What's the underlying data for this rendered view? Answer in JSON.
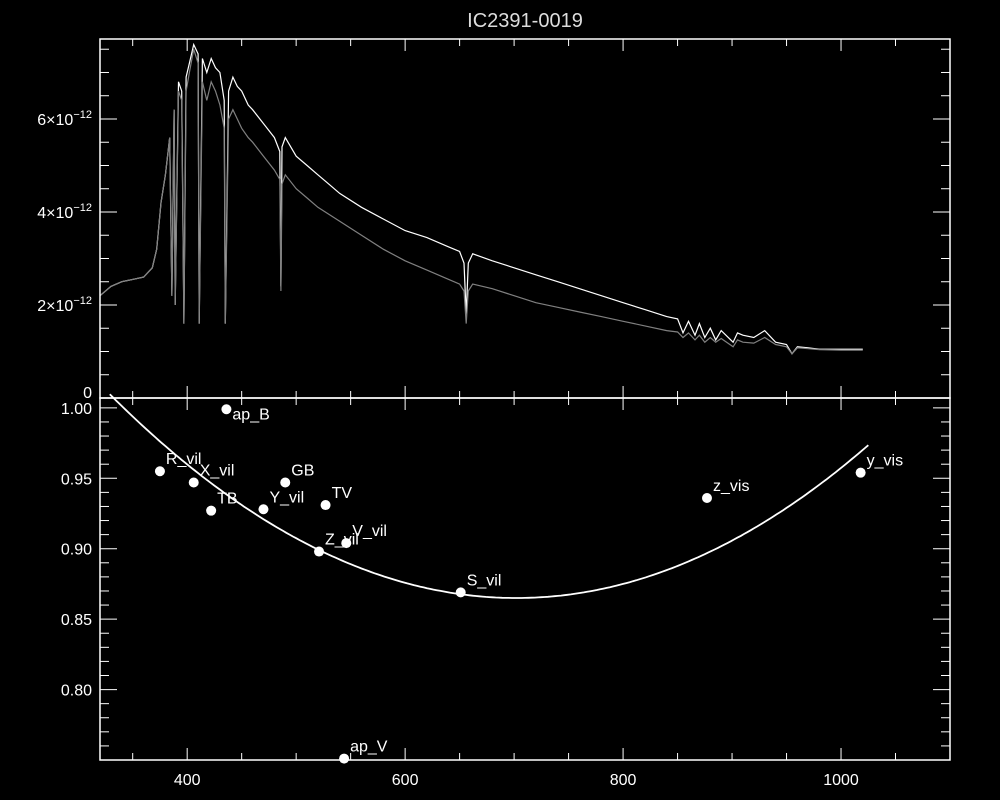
{
  "chart_data": [
    {
      "type": "line",
      "title": "IC2391-0019",
      "xlabel": "",
      "ylabel": "",
      "xlim": [
        320,
        1100
      ],
      "ylim": [
        0,
        7.72e-12
      ],
      "x_ticks": [
        400,
        600,
        800,
        1000
      ],
      "y_tick_labels": [
        {
          "value": 0,
          "mantissa": "0",
          "exponent": ""
        },
        {
          "value": 2e-12,
          "mantissa": "2×10",
          "exponent": "−12"
        },
        {
          "value": 4e-12,
          "mantissa": "4×10",
          "exponent": "−12"
        },
        {
          "value": 6e-12,
          "mantissa": "6×10",
          "exponent": "−12"
        }
      ],
      "grid": false,
      "series": [
        {
          "color": "#ffffff",
          "x": [
            320,
            330,
            340,
            350,
            360,
            368,
            372,
            376,
            380,
            384,
            386,
            388,
            389,
            392,
            395,
            397,
            399,
            402,
            406,
            410,
            411,
            414,
            418,
            422,
            426,
            430,
            434,
            435,
            438,
            442,
            446,
            450,
            456,
            460,
            470,
            480,
            485,
            486,
            487,
            490,
            500,
            510,
            520,
            530,
            540,
            560,
            580,
            600,
            620,
            640,
            650,
            654,
            656,
            658,
            662,
            680,
            700,
            720,
            740,
            760,
            780,
            800,
            820,
            840,
            850,
            855,
            860,
            866,
            870,
            875,
            880,
            885,
            890,
            901,
            905,
            910,
            920,
            930,
            940,
            950,
            955,
            960,
            970,
            980,
            1000,
            1020
          ],
          "y": [
            2.2e-12,
            2.4e-12,
            2.5e-12,
            2.55e-12,
            2.6e-12,
            2.8e-12,
            3.2e-12,
            4.2e-12,
            4.8e-12,
            5.6e-12,
            2.2e-12,
            6.2e-12,
            2e-12,
            6.8e-12,
            6.6e-12,
            1.6e-12,
            6.9e-12,
            7.2e-12,
            7.6e-12,
            7.4e-12,
            1.6e-12,
            7.3e-12,
            7e-12,
            7.3e-12,
            7.1e-12,
            7e-12,
            6.4e-12,
            1.6e-12,
            6.6e-12,
            6.9e-12,
            6.7e-12,
            6.6e-12,
            6.3e-12,
            6.2e-12,
            5.9e-12,
            5.6e-12,
            5.3e-12,
            2.4e-12,
            5.4e-12,
            5.6e-12,
            5.2e-12,
            5e-12,
            4.8e-12,
            4.6e-12,
            4.4e-12,
            4.1e-12,
            3.85e-12,
            3.6e-12,
            3.45e-12,
            3.25e-12,
            3.15e-12,
            2.9e-12,
            1.8e-12,
            2.9e-12,
            3.1e-12,
            2.95e-12,
            2.8e-12,
            2.65e-12,
            2.5e-12,
            2.35e-12,
            2.2e-12,
            2.05e-12,
            1.9e-12,
            1.75e-12,
            1.7e-12,
            1.4e-12,
            1.65e-12,
            1.35e-12,
            1.6e-12,
            1.3e-12,
            1.5e-12,
            1.25e-12,
            1.45e-12,
            1.2e-12,
            1.4e-12,
            1.35e-12,
            1.3e-12,
            1.45e-12,
            1.2e-12,
            1.15e-12,
            9.5e-13,
            1.1e-12,
            1.08e-12,
            1.05e-12,
            1.05e-12,
            1.05e-12
          ]
        },
        {
          "color": "#808080",
          "x": [
            320,
            330,
            340,
            350,
            360,
            368,
            372,
            376,
            380,
            384,
            386,
            388,
            389,
            392,
            395,
            397,
            399,
            402,
            406,
            410,
            411,
            414,
            418,
            422,
            426,
            430,
            434,
            435,
            438,
            442,
            446,
            450,
            456,
            460,
            470,
            480,
            485,
            486,
            487,
            490,
            500,
            510,
            520,
            530,
            540,
            560,
            580,
            600,
            620,
            640,
            650,
            654,
            656,
            658,
            662,
            680,
            700,
            720,
            740,
            760,
            780,
            800,
            820,
            840,
            850,
            855,
            860,
            866,
            870,
            875,
            880,
            885,
            890,
            901,
            905,
            910,
            920,
            930,
            940,
            950,
            955,
            960,
            970,
            980,
            1000,
            1020
          ],
          "y": [
            2.2e-12,
            2.4e-12,
            2.5e-12,
            2.55e-12,
            2.6e-12,
            2.8e-12,
            3.2e-12,
            4.2e-12,
            4.8e-12,
            5.6e-12,
            2.2e-12,
            6.2e-12,
            2e-12,
            6.6e-12,
            6.4e-12,
            1.6e-12,
            6.6e-12,
            7e-12,
            7.5e-12,
            7.2e-12,
            1.6e-12,
            6.8e-12,
            6.4e-12,
            6.8e-12,
            6.6e-12,
            6.3e-12,
            5.8e-12,
            1.6e-12,
            6e-12,
            6.2e-12,
            6e-12,
            5.8e-12,
            5.6e-12,
            5.5e-12,
            5.2e-12,
            4.9e-12,
            4.7e-12,
            2.3e-12,
            4.6e-12,
            4.8e-12,
            4.5e-12,
            4.3e-12,
            4.1e-12,
            3.95e-12,
            3.8e-12,
            3.5e-12,
            3.2e-12,
            2.95e-12,
            2.75e-12,
            2.55e-12,
            2.45e-12,
            2.3e-12,
            1.6e-12,
            2.3e-12,
            2.45e-12,
            2.35e-12,
            2.2e-12,
            2.05e-12,
            1.95e-12,
            1.85e-12,
            1.75e-12,
            1.65e-12,
            1.55e-12,
            1.45e-12,
            1.42e-12,
            1.3e-12,
            1.4e-12,
            1.25e-12,
            1.35e-12,
            1.2e-12,
            1.3e-12,
            1.2e-12,
            1.28e-12,
            1.1e-12,
            1.25e-12,
            1.2e-12,
            1.18e-12,
            1.3e-12,
            1.15e-12,
            1.1e-12,
            9.5e-13,
            1.08e-12,
            1.06e-12,
            1.04e-12,
            1.03e-12,
            1.03e-12
          ]
        }
      ]
    },
    {
      "type": "scatter",
      "xlabel": "",
      "ylabel": "",
      "xlim": [
        320,
        1100
      ],
      "ylim": [
        0.75,
        1.007
      ],
      "x_ticks": [
        400,
        600,
        800,
        1000
      ],
      "x_tick_labels": [
        "400",
        "600",
        "800",
        "1000"
      ],
      "y_ticks": [
        0.8,
        0.85,
        0.9,
        0.95,
        1.0
      ],
      "y_tick_labels": [
        "0.80",
        "0.85",
        "0.90",
        "0.95",
        "1.00"
      ],
      "grid": false,
      "points": [
        {
          "label": "ap_B",
          "x": 436,
          "y": 0.999
        },
        {
          "label": "R_vil",
          "x": 375,
          "y": 0.955
        },
        {
          "label": "X_vil",
          "x": 406,
          "y": 0.947
        },
        {
          "label": "TB",
          "x": 422,
          "y": 0.927
        },
        {
          "label": "Y_vil",
          "x": 470,
          "y": 0.928
        },
        {
          "label": "GB",
          "x": 490,
          "y": 0.947
        },
        {
          "label": "TV",
          "x": 527,
          "y": 0.931
        },
        {
          "label": "Z_vil",
          "x": 521,
          "y": 0.898
        },
        {
          "label": "V_vil",
          "x": 546,
          "y": 0.904
        },
        {
          "label": "S_vil",
          "x": 651,
          "y": 0.869
        },
        {
          "label": "z_vis",
          "x": 877,
          "y": 0.936
        },
        {
          "label": "y_vis",
          "x": 1018,
          "y": 0.954
        },
        {
          "label": "ap_V",
          "x": 544,
          "y": 0.751
        }
      ],
      "fit_curve": {
        "type": "quadratic",
        "x_range": [
          329,
          1026
        ],
        "vertex_x": 702,
        "vertex_y": 0.865,
        "curvature": 1.04e-06
      }
    }
  ]
}
